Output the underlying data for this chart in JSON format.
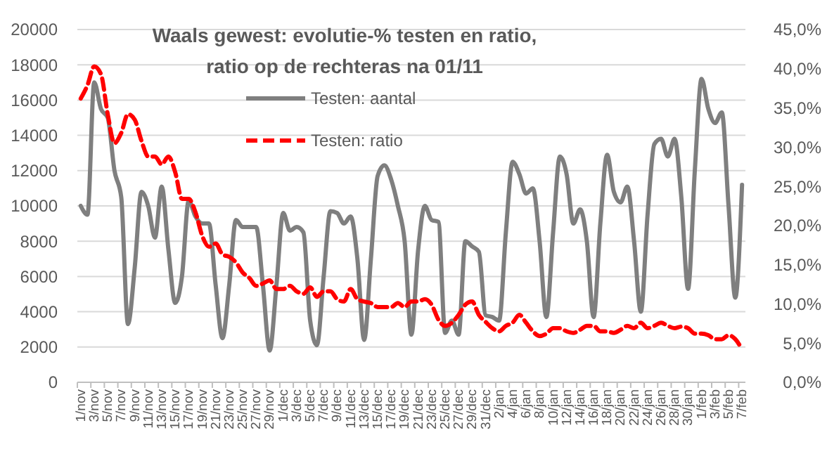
{
  "chart_data": {
    "type": "line",
    "title": "Waals gewest: evolutie-% testen en ratio,",
    "subtitle": "ratio op de rechteras na 01/11",
    "categories": [
      "1/nov",
      null,
      "3/nov",
      null,
      "5/nov",
      null,
      "7/nov",
      null,
      "9/nov",
      null,
      "11/nov",
      null,
      "13/nov",
      null,
      "15/nov",
      null,
      "17/nov",
      null,
      "19/nov",
      null,
      "21/nov",
      null,
      "23/nov",
      null,
      "25/nov",
      null,
      "27/nov",
      null,
      "29/nov",
      null,
      "1/dec",
      null,
      "3/dec",
      null,
      "5/dec",
      null,
      "7/dec",
      null,
      "9/dec",
      null,
      "11/dec",
      null,
      "13/dec",
      null,
      "15/dec",
      null,
      "17/dec",
      null,
      "19/dec",
      null,
      "21/dec",
      null,
      "23/dec",
      null,
      "25/dec",
      null,
      "27/dec",
      null,
      "29/dec",
      null,
      "31/dec",
      null,
      "2/jan",
      null,
      "4/jan",
      null,
      "6/jan",
      null,
      "8/jan",
      null,
      "10/jan",
      null,
      "12/jan",
      null,
      "14/jan",
      null,
      "16/jan",
      null,
      "18/jan",
      null,
      "20/jan",
      null,
      "22/jan",
      null,
      "24/jan",
      null,
      "26/jan",
      null,
      "28/jan",
      null,
      "30/jan",
      null,
      "1/feb",
      null,
      "3/feb",
      null,
      "5/feb",
      null,
      "7/feb"
    ],
    "series": [
      {
        "name": "Testen: aantal",
        "color": "#7f7f7f",
        "line_style": "solid",
        "values": [
          10000,
          9500,
          17000,
          15500,
          15000,
          12000,
          10500,
          3300,
          6500,
          10800,
          10000,
          8200,
          11100,
          7500,
          4500,
          6000,
          10300,
          9400,
          9000,
          9000,
          5500,
          2500,
          5500,
          9200,
          8800,
          8800,
          8800,
          5500,
          1800,
          5500,
          9600,
          8600,
          8800,
          8500,
          3500,
          2100,
          6000,
          9700,
          9600,
          9000,
          9400,
          7000,
          2400,
          7000,
          11700,
          12300,
          11500,
          10000,
          8000,
          2700,
          7500,
          10000,
          9200,
          9100,
          2800,
          3500,
          2700,
          8000,
          7700,
          7400,
          3800,
          3700,
          3500,
          8500,
          12500,
          11800,
          10700,
          11000,
          8000,
          3700,
          8500,
          12800,
          11800,
          9000,
          9800,
          8000,
          3700,
          9000,
          12900,
          10800,
          10200,
          11100,
          8000,
          4000,
          9500,
          13500,
          13800,
          12800,
          13800,
          10500,
          5300,
          12000,
          17200,
          15500,
          14700,
          15300,
          10000,
          4800,
          11200
        ]
      },
      {
        "name": "Testen: ratio",
        "color": "#ff0000",
        "line_style": "dashed",
        "axis": "y2",
        "values": [
          36.2,
          37.9,
          40.3,
          39.3,
          34.2,
          30.5,
          31.8,
          34.2,
          33.5,
          30.8,
          28.8,
          28.8,
          27.8,
          28.8,
          26.8,
          23.4,
          23.4,
          21.7,
          18.7,
          17.3,
          17.7,
          16.3,
          16.0,
          15.3,
          14.0,
          13.3,
          12.3,
          12.6,
          13.0,
          11.9,
          11.9,
          12.3,
          11.6,
          11.3,
          12.1,
          10.9,
          11.6,
          11.6,
          10.6,
          10.3,
          11.9,
          10.6,
          10.3,
          10.1,
          9.6,
          9.6,
          9.6,
          10.1,
          9.6,
          10.3,
          10.3,
          10.6,
          9.9,
          8.0,
          7.2,
          7.6,
          8.6,
          9.9,
          10.3,
          8.6,
          7.7,
          6.9,
          6.5,
          7.2,
          7.6,
          8.6,
          7.6,
          6.5,
          5.9,
          6.2,
          6.9,
          6.9,
          6.5,
          6.3,
          6.7,
          7.2,
          7.2,
          6.5,
          6.5,
          6.3,
          6.7,
          7.2,
          6.9,
          7.6,
          6.9,
          7.2,
          7.6,
          7.2,
          6.9,
          7.1,
          6.9,
          6.2,
          6.2,
          6.0,
          5.5,
          5.5,
          6.0,
          5.5,
          4.2
        ]
      }
    ],
    "ylim": [
      0,
      20000
    ],
    "yticks": [
      0,
      2000,
      4000,
      6000,
      8000,
      10000,
      12000,
      14000,
      16000,
      18000,
      20000
    ],
    "y2lim": [
      0,
      45
    ],
    "y2ticks": [
      {
        "value": 0,
        "label": "0,0%"
      },
      {
        "value": 5,
        "label": "5,0%"
      },
      {
        "value": 10,
        "label": "10,0%"
      },
      {
        "value": 15,
        "label": "15,0%"
      },
      {
        "value": 20,
        "label": "20,0%"
      },
      {
        "value": 25,
        "label": "25,0%"
      },
      {
        "value": 30,
        "label": "30,0%"
      },
      {
        "value": 35,
        "label": "35,0%"
      },
      {
        "value": 40,
        "label": "40,0%"
      },
      {
        "value": 45,
        "label": "45,0%"
      }
    ],
    "grid": "y",
    "legend": "top",
    "marker": "none"
  }
}
